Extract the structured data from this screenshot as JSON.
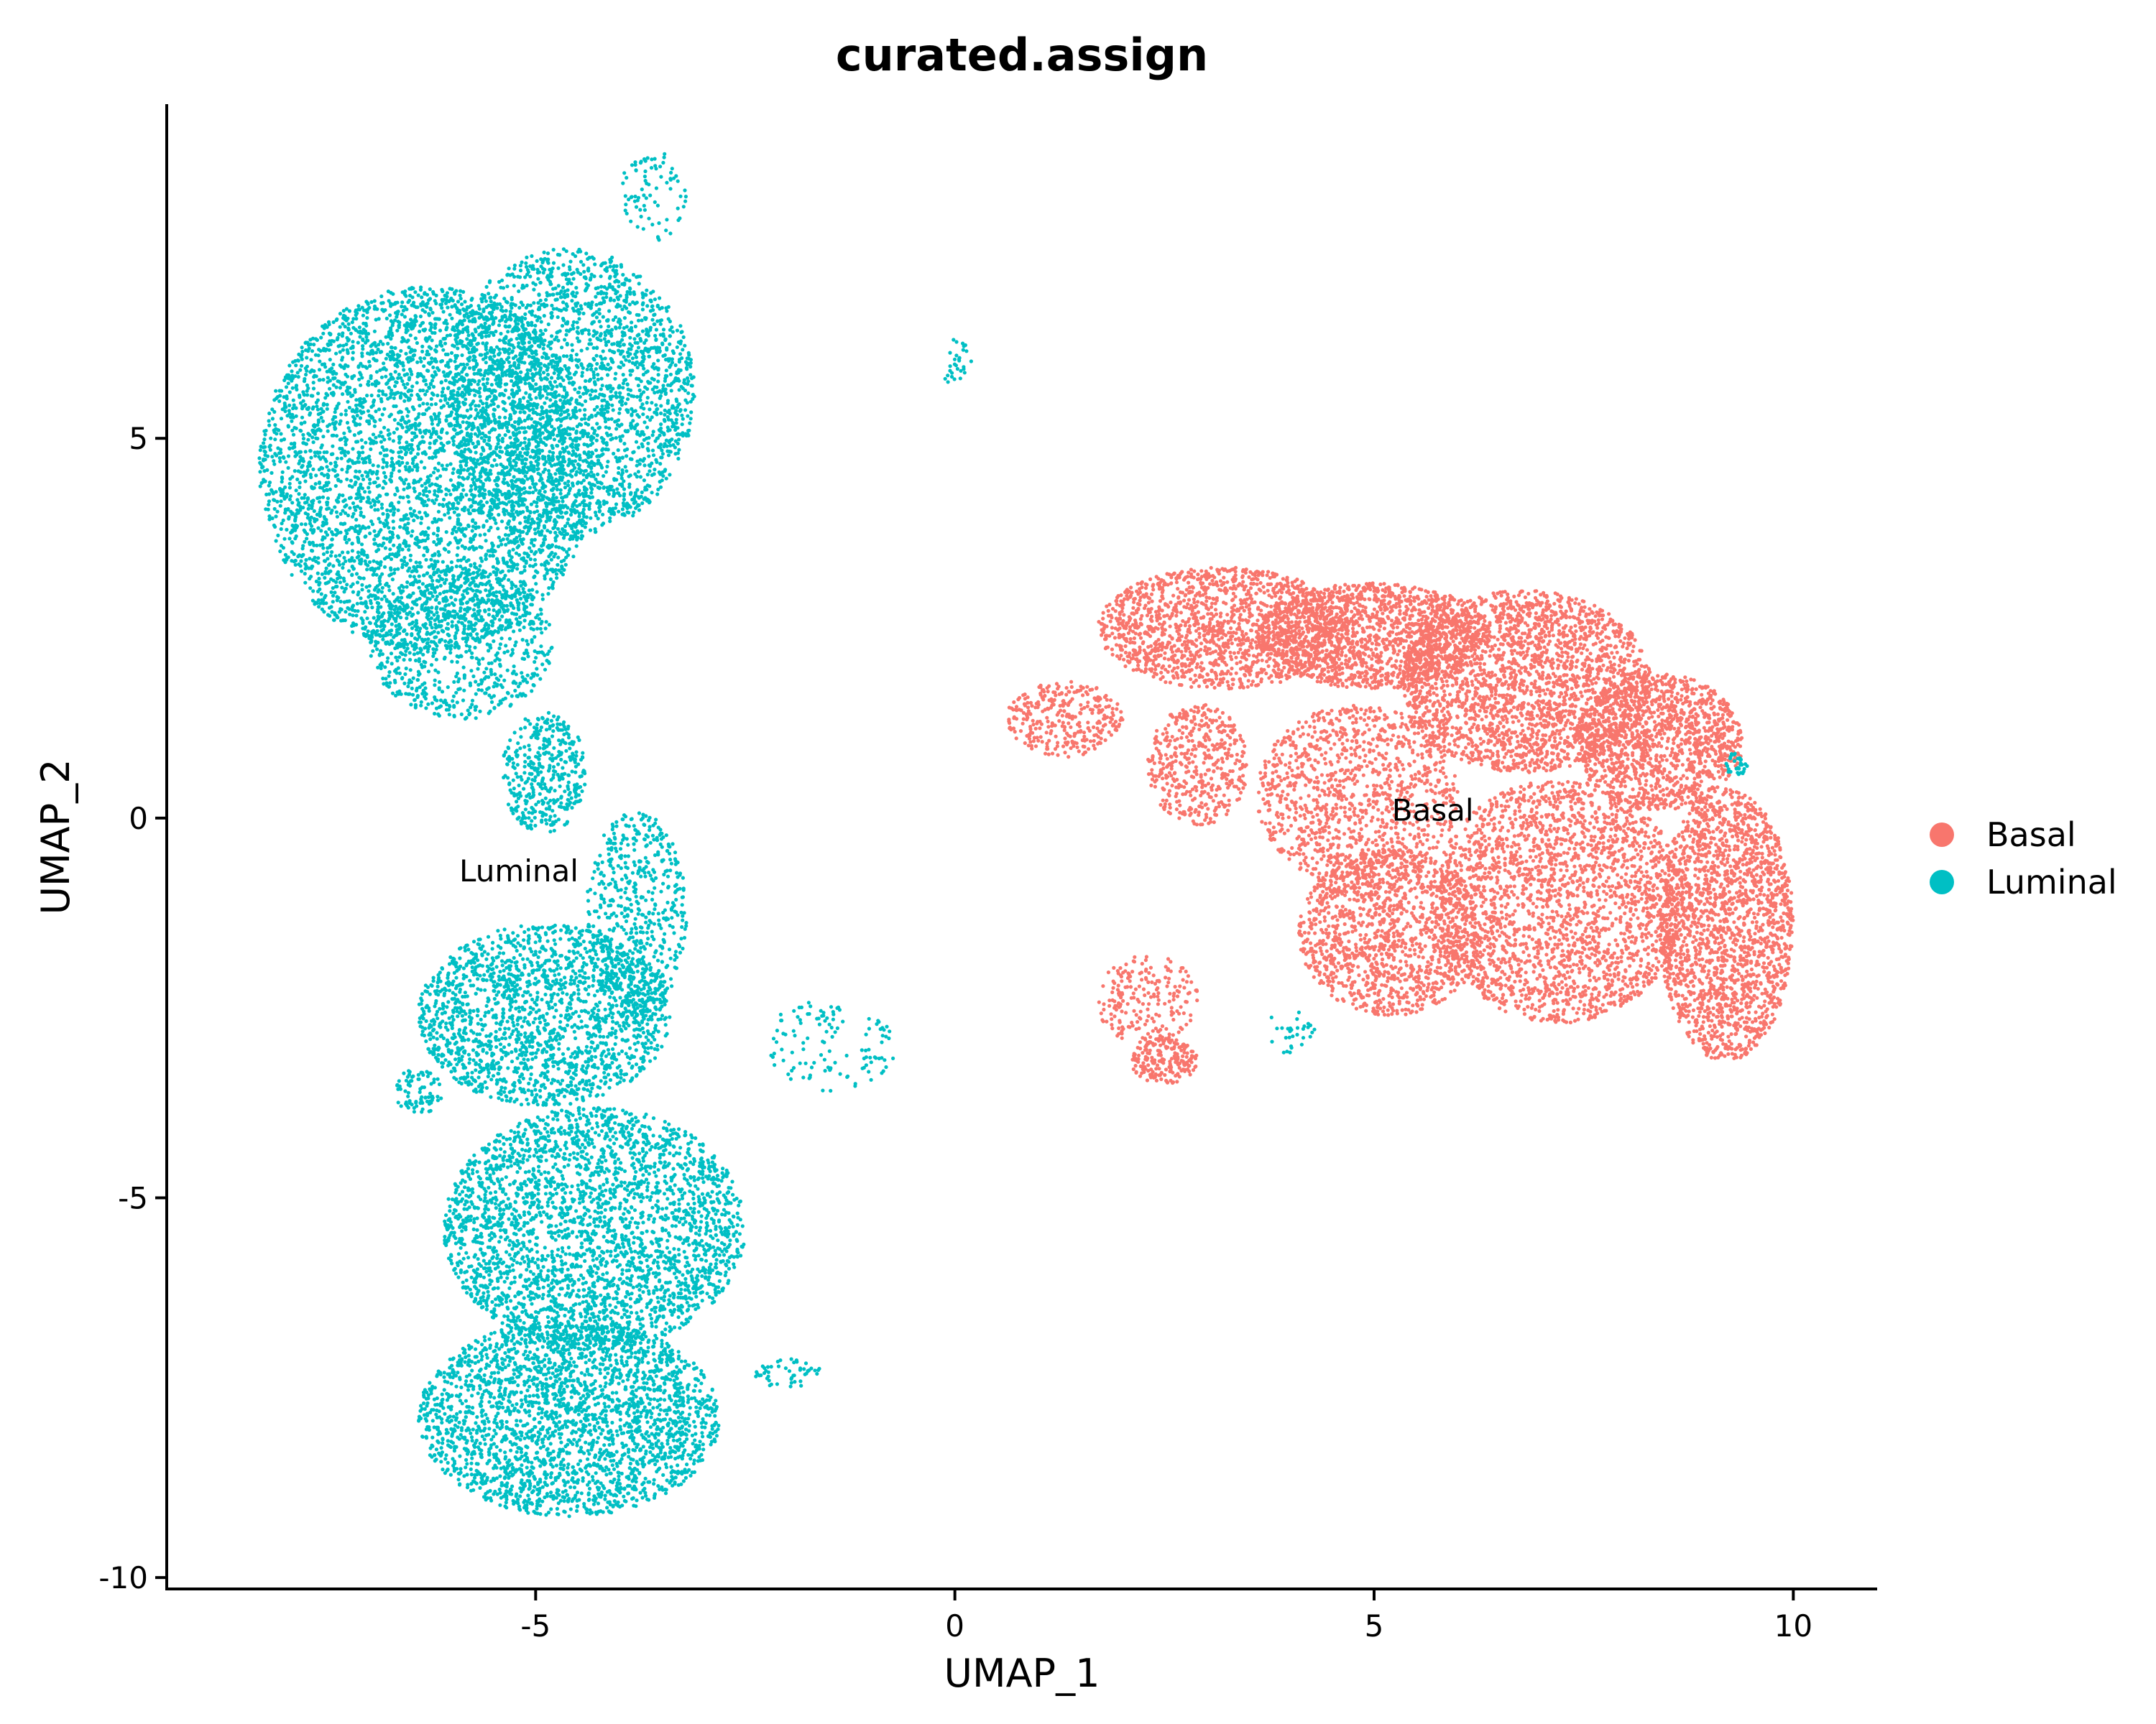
{
  "chart_data": {
    "type": "scatter",
    "title": "curated.assign",
    "xlabel": "UMAP_1",
    "ylabel": "UMAP_2",
    "xlim": [
      -9.4,
      11.0
    ],
    "ylim": [
      -10.15,
      9.4
    ],
    "xticks": [
      -5,
      0,
      5,
      10
    ],
    "xtick_labels": [
      "-5",
      "0",
      "5",
      "10"
    ],
    "yticks": [
      -10,
      -5,
      0,
      5
    ],
    "ytick_labels": [
      "-10",
      "-5",
      "0",
      "5"
    ],
    "grid": false,
    "legend_position": "right",
    "series": [
      {
        "name": "Basal",
        "color": "#F8766D",
        "centroid_label": "Basal",
        "label_position": [
          5.7,
          0.1
        ],
        "regions": [
          {
            "cx": 3.2,
            "cy": 2.5,
            "rx": 1.5,
            "ry": 0.8,
            "n": 1500
          },
          {
            "cx": 5.0,
            "cy": 2.4,
            "rx": 1.4,
            "ry": 0.7,
            "n": 1600
          },
          {
            "cx": 6.8,
            "cy": 1.8,
            "rx": 1.5,
            "ry": 1.2,
            "n": 2300
          },
          {
            "cx": 8.4,
            "cy": 1.0,
            "rx": 1.0,
            "ry": 0.9,
            "n": 1300
          },
          {
            "cx": 9.2,
            "cy": -1.4,
            "rx": 0.8,
            "ry": 1.8,
            "n": 1900
          },
          {
            "cx": 7.2,
            "cy": -1.1,
            "rx": 1.5,
            "ry": 1.6,
            "n": 2300
          },
          {
            "cx": 5.2,
            "cy": -1.5,
            "rx": 1.1,
            "ry": 1.1,
            "n": 1300
          },
          {
            "cx": 4.8,
            "cy": 0.3,
            "rx": 1.2,
            "ry": 1.2,
            "n": 1100
          },
          {
            "cx": 2.9,
            "cy": 0.7,
            "rx": 0.6,
            "ry": 0.8,
            "n": 450
          },
          {
            "cx": 1.3,
            "cy": 1.3,
            "rx": 0.7,
            "ry": 0.5,
            "n": 320
          },
          {
            "cx": 2.3,
            "cy": -2.4,
            "rx": 0.6,
            "ry": 0.6,
            "n": 220
          },
          {
            "cx": 2.5,
            "cy": -3.2,
            "rx": 0.4,
            "ry": 0.3,
            "n": 200
          }
        ]
      },
      {
        "name": "Luminal",
        "color": "#00BFC4",
        "centroid_label": "Luminal",
        "label_position": [
          -5.2,
          -0.7
        ],
        "regions": [
          {
            "cx": -6.3,
            "cy": 4.6,
            "rx": 2.0,
            "ry": 2.4,
            "n": 4300
          },
          {
            "cx": -4.6,
            "cy": 5.6,
            "rx": 1.5,
            "ry": 1.9,
            "n": 2300
          },
          {
            "cx": -5.9,
            "cy": 2.3,
            "rx": 1.1,
            "ry": 1.0,
            "n": 700
          },
          {
            "cx": -4.9,
            "cy": 0.6,
            "rx": 0.5,
            "ry": 0.8,
            "n": 400
          },
          {
            "cx": -3.8,
            "cy": -1.3,
            "rx": 0.6,
            "ry": 1.4,
            "n": 600
          },
          {
            "cx": -4.9,
            "cy": -2.6,
            "rx": 1.5,
            "ry": 1.2,
            "n": 1800
          },
          {
            "cx": -4.3,
            "cy": -5.4,
            "rx": 1.8,
            "ry": 1.6,
            "n": 2900
          },
          {
            "cx": -4.6,
            "cy": -7.9,
            "rx": 1.8,
            "ry": 1.3,
            "n": 2600
          },
          {
            "cx": -6.4,
            "cy": -3.6,
            "rx": 0.3,
            "ry": 0.3,
            "n": 80
          },
          {
            "cx": -3.6,
            "cy": 8.2,
            "rx": 0.4,
            "ry": 0.6,
            "n": 80
          },
          {
            "cx": 0.0,
            "cy": 6.0,
            "rx": 0.2,
            "ry": 0.3,
            "n": 30
          },
          {
            "cx": -1.5,
            "cy": -3.0,
            "rx": 0.8,
            "ry": 0.6,
            "n": 120
          },
          {
            "cx": -2.0,
            "cy": -7.3,
            "rx": 0.4,
            "ry": 0.2,
            "n": 50
          },
          {
            "cx": 9.3,
            "cy": 0.7,
            "rx": 0.15,
            "ry": 0.15,
            "n": 30
          },
          {
            "cx": 4.0,
            "cy": -2.8,
            "rx": 0.3,
            "ry": 0.3,
            "n": 30
          }
        ]
      }
    ]
  }
}
